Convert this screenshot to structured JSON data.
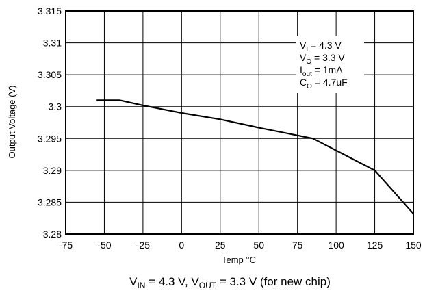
{
  "chart_data": {
    "type": "line",
    "title": "",
    "xlabel": "Temp °C",
    "ylabel": "Output Voltage (V)",
    "xlim": [
      -75,
      150
    ],
    "ylim": [
      3.28,
      3.315
    ],
    "x_ticks": [
      -75,
      -50,
      -25,
      0,
      25,
      50,
      75,
      100,
      125,
      150
    ],
    "y_ticks": [
      3.28,
      3.285,
      3.29,
      3.295,
      3.3,
      3.305,
      3.31,
      3.315
    ],
    "x_tick_labels": [
      "-75",
      "-50",
      "-25",
      "0",
      "25",
      "50",
      "75",
      "100",
      "125",
      "150"
    ],
    "y_tick_labels": [
      "3.28",
      "3.285",
      "3.29",
      "3.295",
      "3.3",
      "3.305",
      "3.31",
      "3.315"
    ],
    "grid": true,
    "legend_placement": "top-right",
    "series": [
      {
        "x": [
          -55,
          -40,
          -25,
          0,
          25,
          50,
          85,
          125,
          150
        ],
        "y": [
          3.301,
          3.301,
          3.3002,
          3.299,
          3.298,
          3.2967,
          3.295,
          3.29,
          3.2832
        ]
      }
    ],
    "conditions": [
      {
        "main": "V",
        "sub": "I",
        "rest": " = 4.3 V"
      },
      {
        "main": "V",
        "sub": "O",
        "rest": " = 3.3 V"
      },
      {
        "main": "I",
        "sub": "out",
        "rest": " = 1mA"
      },
      {
        "main": "C",
        "sub": "O",
        "rest": " = 4.7uF"
      }
    ],
    "caption": {
      "v1": "V",
      "v1_sub": "IN",
      "v1_rest": " = 4.3 V, ",
      "v2": "V",
      "v2_sub": "OUT",
      "v2_rest": " = 3.3 V (for new chip)"
    }
  }
}
